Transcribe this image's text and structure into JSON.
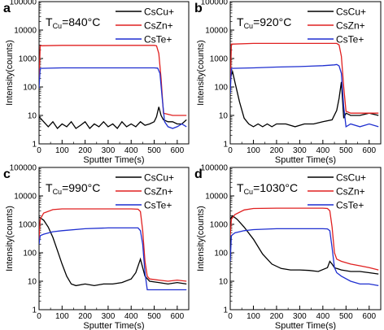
{
  "figure": {
    "xlabel": "Sputter Time(s)",
    "ylabel": "Intensity(counts)"
  },
  "styles": {
    "series_colors": {
      "CsCu+": "#000000",
      "CsZn+": "#e02020",
      "CsTe+": "#1f2fd0"
    }
  },
  "chart_data": [
    {
      "type": "line",
      "panel_label": "a",
      "annotation": {
        "main": "T",
        "sub": "Cu",
        "value": "=840°C"
      },
      "xlabel": "Sputter Time(s)",
      "ylabel": "Intensity(counts)",
      "xlim": [
        0,
        650
      ],
      "ylim": [
        1,
        100000
      ],
      "yscale": "log",
      "xticks": [
        0,
        100,
        200,
        300,
        400,
        500,
        600
      ],
      "yticks": [
        1,
        10,
        100,
        1000,
        10000,
        100000
      ],
      "legend_position": "top-right",
      "grid": false,
      "series": [
        {
          "name": "CsCu+",
          "x": [
            0,
            20,
            40,
            60,
            80,
            100,
            120,
            140,
            160,
            180,
            200,
            220,
            240,
            260,
            280,
            300,
            320,
            340,
            360,
            380,
            400,
            420,
            440,
            460,
            480,
            500,
            510,
            520,
            530,
            540,
            560,
            580,
            600,
            620,
            640
          ],
          "y": [
            9,
            6,
            4,
            6,
            3.5,
            5,
            4,
            6,
            3.5,
            4.5,
            6,
            3.5,
            5,
            4,
            6,
            4,
            5,
            3.5,
            6,
            4,
            5,
            4,
            6,
            4.5,
            5,
            6,
            9,
            20,
            10,
            7,
            6,
            6,
            5,
            5,
            7
          ]
        },
        {
          "name": "CsZn+",
          "x": [
            0,
            5,
            100,
            200,
            300,
            400,
            500,
            510,
            520,
            530,
            540,
            560,
            580,
            600,
            620,
            640
          ],
          "y": [
            120,
            2800,
            2900,
            2900,
            2900,
            2900,
            2900,
            2800,
            1500,
            200,
            12,
            11,
            10,
            10,
            10,
            10
          ]
        },
        {
          "name": "CsTe+",
          "x": [
            0,
            5,
            100,
            200,
            300,
            400,
            500,
            515,
            525,
            535,
            545,
            560,
            580,
            600,
            620,
            640
          ],
          "y": [
            90,
            450,
            470,
            470,
            470,
            470,
            470,
            460,
            300,
            40,
            6,
            4,
            3.5,
            4,
            5,
            4
          ]
        }
      ]
    },
    {
      "type": "line",
      "panel_label": "b",
      "annotation": {
        "main": "T",
        "sub": "Cu",
        "value": "=920°C"
      },
      "xlabel": "Sputter Time(s)",
      "ylabel": "Intensity(counts)",
      "xlim": [
        0,
        650
      ],
      "ylim": [
        1,
        100000
      ],
      "yscale": "log",
      "xticks": [
        0,
        100,
        200,
        300,
        400,
        500,
        600
      ],
      "yticks": [
        1,
        10,
        100,
        1000,
        10000,
        100000
      ],
      "legend_position": "top-right",
      "grid": false,
      "series": [
        {
          "name": "CsCu+",
          "x": [
            0,
            10,
            20,
            40,
            60,
            80,
            100,
            120,
            140,
            160,
            180,
            200,
            240,
            280,
            320,
            360,
            400,
            440,
            460,
            470,
            480,
            490,
            500,
            520,
            560,
            600,
            640
          ],
          "y": [
            200,
            350,
            150,
            30,
            8,
            5,
            4,
            5,
            4,
            5,
            4,
            5,
            5,
            4,
            5,
            5,
            6,
            7,
            15,
            40,
            150,
            8,
            12,
            10,
            10,
            12,
            10
          ]
        },
        {
          "name": "CsZn+",
          "x": [
            0,
            5,
            100,
            200,
            300,
            400,
            460,
            470,
            480,
            490,
            500,
            520,
            560,
            600,
            640
          ],
          "y": [
            80,
            3200,
            3400,
            3400,
            3400,
            3400,
            3400,
            3000,
            1200,
            100,
            14,
            12,
            12,
            12,
            12
          ]
        },
        {
          "name": "CsTe+",
          "x": [
            0,
            5,
            100,
            200,
            300,
            400,
            450,
            460,
            470,
            480,
            490,
            500,
            520,
            560,
            600,
            640
          ],
          "y": [
            60,
            450,
            470,
            500,
            520,
            560,
            600,
            620,
            550,
            300,
            20,
            4,
            5,
            4,
            5,
            4
          ]
        }
      ]
    },
    {
      "type": "line",
      "panel_label": "c",
      "annotation": {
        "main": "T",
        "sub": "Cu",
        "value": "=990°C"
      },
      "xlabel": "Sputter Time(s)",
      "ylabel": "Intensity(counts)",
      "xlim": [
        0,
        650
      ],
      "ylim": [
        1,
        100000
      ],
      "yscale": "log",
      "xticks": [
        0,
        100,
        200,
        300,
        400,
        500,
        600
      ],
      "yticks": [
        1,
        10,
        100,
        1000,
        10000,
        100000
      ],
      "legend_position": "top-right",
      "grid": false,
      "series": [
        {
          "name": "CsCu+",
          "x": [
            0,
            20,
            40,
            60,
            80,
            100,
            120,
            140,
            160,
            200,
            240,
            280,
            320,
            360,
            400,
            420,
            440,
            450,
            460,
            480,
            520,
            560,
            600,
            640
          ],
          "y": [
            1800,
            1400,
            800,
            350,
            120,
            40,
            15,
            8,
            7,
            8,
            7,
            8,
            8,
            9,
            12,
            20,
            60,
            30,
            15,
            10,
            9,
            8,
            9,
            8
          ]
        },
        {
          "name": "CsZn+",
          "x": [
            0,
            5,
            20,
            60,
            100,
            200,
            300,
            400,
            430,
            440,
            450,
            460,
            470,
            480,
            520,
            560,
            600,
            640
          ],
          "y": [
            300,
            1500,
            2500,
            3300,
            3500,
            3500,
            3500,
            3500,
            3400,
            2800,
            600,
            50,
            15,
            12,
            11,
            10,
            11,
            10
          ]
        },
        {
          "name": "CsTe+",
          "x": [
            0,
            5,
            20,
            60,
            100,
            200,
            300,
            400,
            430,
            440,
            450,
            460,
            470,
            480,
            520,
            560,
            600,
            640
          ],
          "y": [
            200,
            400,
            450,
            550,
            600,
            700,
            750,
            750,
            750,
            600,
            200,
            20,
            5,
            5,
            5,
            5,
            5,
            5
          ]
        }
      ]
    },
    {
      "type": "line",
      "panel_label": "d",
      "annotation": {
        "main": "T",
        "sub": "Cu",
        "value": "=1030°C"
      },
      "xlabel": "Sputter Time(s)",
      "ylabel": "Intensity(counts)",
      "xlim": [
        0,
        650
      ],
      "ylim": [
        1,
        100000
      ],
      "yscale": "log",
      "xticks": [
        0,
        100,
        200,
        300,
        400,
        500,
        600
      ],
      "yticks": [
        1,
        10,
        100,
        1000,
        10000,
        100000
      ],
      "legend_position": "top-right",
      "grid": false,
      "series": [
        {
          "name": "CsCu+",
          "x": [
            0,
            10,
            30,
            60,
            100,
            140,
            180,
            220,
            260,
            300,
            340,
            380,
            420,
            430,
            440,
            450,
            460,
            480,
            520,
            560,
            600,
            640
          ],
          "y": [
            1500,
            2000,
            1500,
            800,
            300,
            90,
            40,
            28,
            25,
            25,
            24,
            22,
            30,
            50,
            40,
            30,
            28,
            25,
            22,
            22,
            20,
            18
          ]
        },
        {
          "name": "CsZn+",
          "x": [
            0,
            5,
            20,
            60,
            100,
            200,
            300,
            400,
            420,
            430,
            440,
            450,
            460,
            480,
            520,
            560,
            600,
            640
          ],
          "y": [
            400,
            1500,
            2200,
            3200,
            3600,
            3700,
            3700,
            3700,
            3600,
            3000,
            800,
            100,
            60,
            50,
            40,
            35,
            30,
            25
          ]
        },
        {
          "name": "CsTe+",
          "x": [
            0,
            5,
            20,
            60,
            100,
            200,
            300,
            400,
            420,
            430,
            440,
            450,
            460,
            480,
            520,
            560,
            600,
            640
          ],
          "y": [
            50,
            400,
            500,
            600,
            650,
            700,
            700,
            700,
            690,
            600,
            150,
            30,
            20,
            15,
            10,
            8,
            8,
            7
          ]
        }
      ]
    }
  ]
}
